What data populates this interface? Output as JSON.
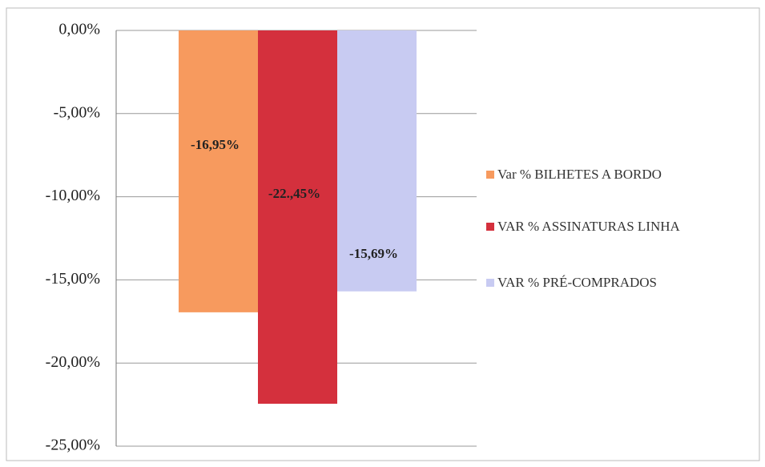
{
  "chart_data": {
    "type": "bar",
    "categories": [
      null
    ],
    "series": [
      {
        "name": "Var % BILHETES A BORDO",
        "color": "#f79a5e",
        "values": [
          -16.95
        ],
        "value_labels": [
          "-16,95%"
        ]
      },
      {
        "name": "VAR % ASSINATURAS LINHA",
        "color": "#d4303d",
        "values": [
          -22.45
        ],
        "value_labels": [
          "-22.,45%"
        ]
      },
      {
        "name": "VAR % PRÉ-COMPRADOS",
        "color": "#c8cbf2",
        "values": [
          -15.69
        ],
        "value_labels": [
          "-15,69%"
        ]
      }
    ],
    "ylim": [
      -25,
      0
    ],
    "yticks": [
      {
        "value": 0,
        "label": "0,00%"
      },
      {
        "value": -5,
        "label": "-5,00%"
      },
      {
        "value": -10,
        "label": "-10,00%"
      },
      {
        "value": -15,
        "label": "-15,00%"
      },
      {
        "value": -20,
        "label": "-20,00%"
      },
      {
        "value": -25,
        "label": "-25,00%"
      }
    ],
    "grid": true,
    "legend": "right"
  }
}
